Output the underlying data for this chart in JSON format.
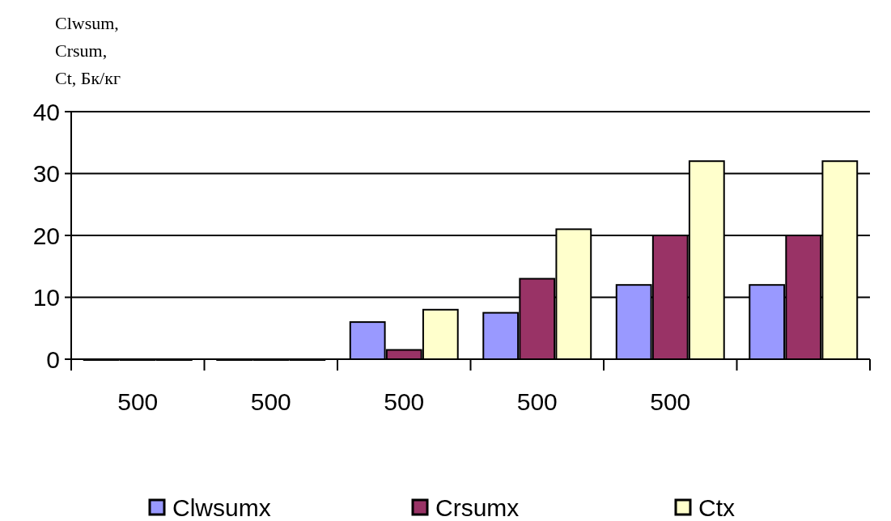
{
  "chart_data": {
    "type": "bar",
    "ylabel": "Clwsum,\nCrsum,\nCt, Бк/кг",
    "categories": [
      "500",
      "500",
      "500",
      "500",
      "500",
      null
    ],
    "series": [
      {
        "name": "Clwsumx",
        "color": "#9999ff",
        "values": [
          0,
          0,
          6,
          7.5,
          12,
          12
        ]
      },
      {
        "name": "Crsumx",
        "color": "#993366",
        "values": [
          0,
          0,
          1.5,
          13,
          20,
          20
        ]
      },
      {
        "name": "Ctx",
        "color": "#ffffcc",
        "values": [
          0,
          0,
          8,
          21,
          32,
          32
        ]
      }
    ],
    "ylim": [
      0,
      40
    ],
    "yticks": [
      0,
      10,
      20,
      30,
      40
    ],
    "grid": "y",
    "legend": "bottom"
  }
}
